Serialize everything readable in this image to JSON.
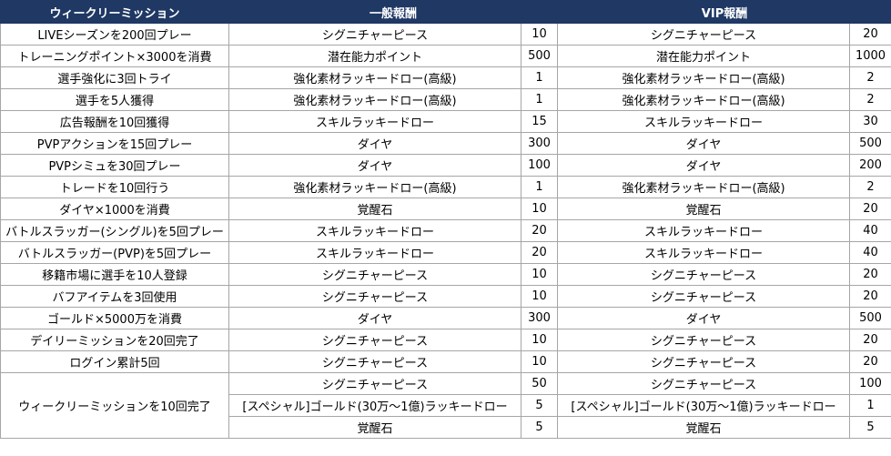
{
  "headers": {
    "mission": "ウィークリーミッション",
    "normal": "一般報酬",
    "vip": "VIP報酬"
  },
  "rows": [
    {
      "mission": "LIVEシーズンを200回プレー",
      "rewards": [
        {
          "normal_item": "シグニチャーピース",
          "normal_qty": "10",
          "vip_item": "シグニチャーピース",
          "vip_qty": "20"
        }
      ]
    },
    {
      "mission": "トレーニングポイント×3000を消費",
      "rewards": [
        {
          "normal_item": "潜在能力ポイント",
          "normal_qty": "500",
          "vip_item": "潜在能力ポイント",
          "vip_qty": "1000"
        }
      ]
    },
    {
      "mission": "選手強化に3回トライ",
      "rewards": [
        {
          "normal_item": "強化素材ラッキードロー(高級)",
          "normal_qty": "1",
          "vip_item": "強化素材ラッキードロー(高級)",
          "vip_qty": "2"
        }
      ]
    },
    {
      "mission": "選手を5人獲得",
      "rewards": [
        {
          "normal_item": "強化素材ラッキードロー(高級)",
          "normal_qty": "1",
          "vip_item": "強化素材ラッキードロー(高級)",
          "vip_qty": "2"
        }
      ]
    },
    {
      "mission": "広告報酬を10回獲得",
      "rewards": [
        {
          "normal_item": "スキルラッキードロー",
          "normal_qty": "15",
          "vip_item": "スキルラッキードロー",
          "vip_qty": "30"
        }
      ]
    },
    {
      "mission": "PVPアクションを15回プレー",
      "rewards": [
        {
          "normal_item": "ダイヤ",
          "normal_qty": "300",
          "vip_item": "ダイヤ",
          "vip_qty": "500"
        }
      ]
    },
    {
      "mission": "PVPシミュを30回プレー",
      "rewards": [
        {
          "normal_item": "ダイヤ",
          "normal_qty": "100",
          "vip_item": "ダイヤ",
          "vip_qty": "200"
        }
      ]
    },
    {
      "mission": "トレードを10回行う",
      "rewards": [
        {
          "normal_item": "強化素材ラッキードロー(高級)",
          "normal_qty": "1",
          "vip_item": "強化素材ラッキードロー(高級)",
          "vip_qty": "2"
        }
      ]
    },
    {
      "mission": "ダイヤ×1000を消費",
      "rewards": [
        {
          "normal_item": "覚醒石",
          "normal_qty": "10",
          "vip_item": "覚醒石",
          "vip_qty": "20"
        }
      ]
    },
    {
      "mission": "バトルスラッガー(シングル)を5回プレー",
      "rewards": [
        {
          "normal_item": "スキルラッキードロー",
          "normal_qty": "20",
          "vip_item": "スキルラッキードロー",
          "vip_qty": "40"
        }
      ]
    },
    {
      "mission": "バトルスラッガー(PVP)を5回プレー",
      "rewards": [
        {
          "normal_item": "スキルラッキードロー",
          "normal_qty": "20",
          "vip_item": "スキルラッキードロー",
          "vip_qty": "40"
        }
      ]
    },
    {
      "mission": "移籍市場に選手を10人登録",
      "rewards": [
        {
          "normal_item": "シグニチャーピース",
          "normal_qty": "10",
          "vip_item": "シグニチャーピース",
          "vip_qty": "20"
        }
      ]
    },
    {
      "mission": "バフアイテムを3回使用",
      "rewards": [
        {
          "normal_item": "シグニチャーピース",
          "normal_qty": "10",
          "vip_item": "シグニチャーピース",
          "vip_qty": "20"
        }
      ]
    },
    {
      "mission": "ゴールド×5000万を消費",
      "rewards": [
        {
          "normal_item": "ダイヤ",
          "normal_qty": "300",
          "vip_item": "ダイヤ",
          "vip_qty": "500"
        }
      ]
    },
    {
      "mission": "デイリーミッションを20回完了",
      "rewards": [
        {
          "normal_item": "シグニチャーピース",
          "normal_qty": "10",
          "vip_item": "シグニチャーピース",
          "vip_qty": "20"
        }
      ]
    },
    {
      "mission": "ログイン累計5回",
      "rewards": [
        {
          "normal_item": "シグニチャーピース",
          "normal_qty": "10",
          "vip_item": "シグニチャーピース",
          "vip_qty": "20"
        }
      ]
    },
    {
      "mission": "ウィークリーミッションを10回完了",
      "rewards": [
        {
          "normal_item": "シグニチャーピース",
          "normal_qty": "50",
          "vip_item": "シグニチャーピース",
          "vip_qty": "100"
        },
        {
          "normal_item": "[スペシャル]ゴールド(30万～1億)ラッキードロー",
          "normal_qty": "5",
          "vip_item": "[スペシャル]ゴールド(30万～1億)ラッキードロー",
          "vip_qty": "1"
        },
        {
          "normal_item": "覚醒石",
          "normal_qty": "5",
          "vip_item": "覚醒石",
          "vip_qty": "5"
        }
      ]
    }
  ]
}
